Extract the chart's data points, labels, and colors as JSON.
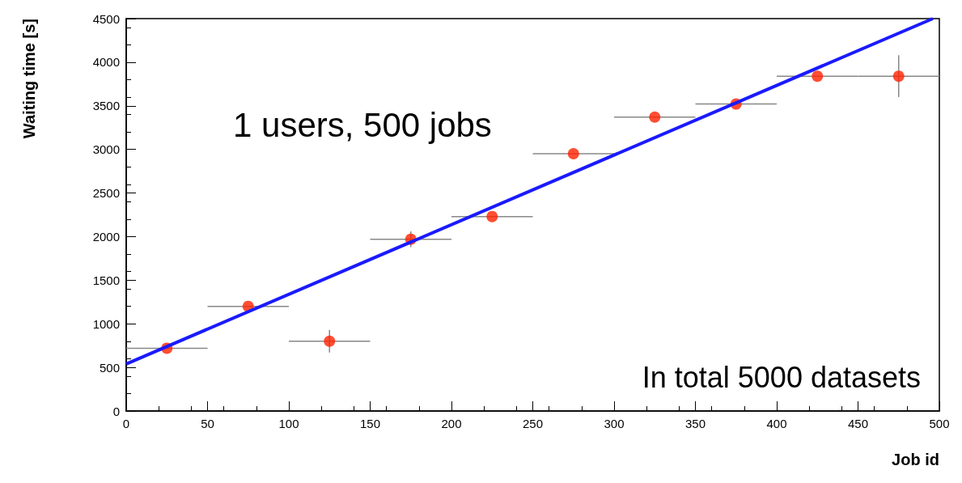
{
  "chart_data": {
    "type": "scatter",
    "xlabel": "Job id",
    "ylabel": "Waiting time [s]",
    "annotations": [
      "1 users, 500 jobs",
      "In total 5000 datasets"
    ],
    "xlim": [
      0,
      500
    ],
    "xticks": [
      0,
      50,
      100,
      150,
      200,
      250,
      300,
      350,
      400,
      450,
      500
    ],
    "ylim": [
      0,
      4500
    ],
    "yticks": [
      0,
      500,
      1000,
      1500,
      2000,
      2500,
      3000,
      3500,
      4000,
      4500
    ],
    "grid": false,
    "marker": "circle",
    "series": [
      {
        "color": "#ff2200",
        "x": [
          25,
          75,
          125,
          175,
          225,
          275,
          325,
          375,
          425,
          475
        ],
        "values": [
          720,
          1200,
          800,
          1970,
          2230,
          2950,
          3370,
          3520,
          3840,
          3840
        ],
        "errors": [
          null,
          null,
          130,
          90,
          null,
          null,
          null,
          null,
          null,
          240
        ],
        "xerrors": [
          25,
          25,
          25,
          25,
          25,
          25,
          25,
          25,
          25,
          25
        ]
      },
      {
        "type": "line",
        "color": "#1a1aff",
        "x": [
          0,
          496
        ],
        "values": [
          540,
          4500
        ],
        "marker": "none",
        "line_style": "solid"
      }
    ]
  }
}
